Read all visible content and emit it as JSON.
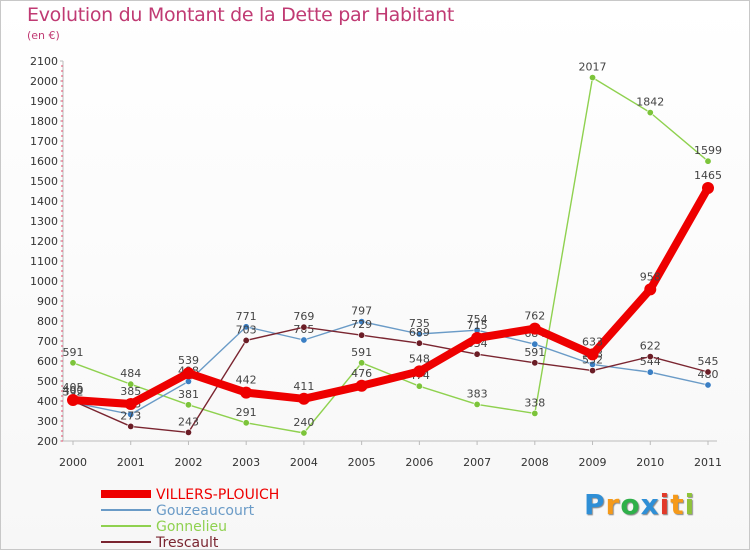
{
  "chart_data": {
    "type": "line",
    "title": "Evolution du Montant de la Dette par Habitant",
    "subtitle": "(en €)",
    "categories": [
      "2000",
      "2001",
      "2002",
      "2003",
      "2004",
      "2005",
      "2006",
      "2007",
      "2008",
      "2009",
      "2010",
      "2011"
    ],
    "ylim": [
      200,
      2100
    ],
    "yticks": [
      200,
      300,
      400,
      500,
      600,
      700,
      800,
      900,
      1000,
      1100,
      1200,
      1300,
      1400,
      1500,
      1600,
      1700,
      1800,
      1900,
      2000,
      2100
    ],
    "grid": false,
    "legend_position": "bottom-left",
    "series": [
      {
        "name": "Gonnelieu",
        "color": "#8fd14f",
        "marker": "#7cc43a",
        "values": [
          591,
          484,
          381,
          291,
          240,
          591,
          474,
          383,
          338,
          2017,
          1842,
          1599
        ]
      },
      {
        "name": "Gouzeaucourt",
        "color": "#6a9bc7",
        "marker": "#3b7fc4",
        "values": [
          392,
          333,
          498,
          771,
          705,
          797,
          735,
          754,
          684,
          583,
          544,
          480
        ]
      },
      {
        "name": "Trescault",
        "color": "#7a2530",
        "marker": "#6b1d26",
        "values": [
          400,
          273,
          243,
          703,
          769,
          729,
          689,
          634,
          591,
          552,
          622,
          545
        ]
      },
      {
        "name": "VILLERS-PLOUICH",
        "color": "#ee0000",
        "marker": "#ee0000",
        "values": [
          405,
          385,
          539,
          442,
          411,
          476,
          548,
          715,
          762,
          633,
          958,
          1465
        ]
      }
    ],
    "legend_order": [
      "VILLERS-PLOUICH",
      "Gouzeaucourt",
      "Gonnelieu",
      "Trescault"
    ]
  },
  "brand": {
    "letters": [
      "P",
      "r",
      "o",
      "x",
      "i",
      "t",
      "i"
    ],
    "colors": [
      "#2f8fd6",
      "#f59a1a",
      "#2fb04a",
      "#2f8fd6",
      "#e23a2a",
      "#f59a1a",
      "#8fc43a"
    ]
  }
}
